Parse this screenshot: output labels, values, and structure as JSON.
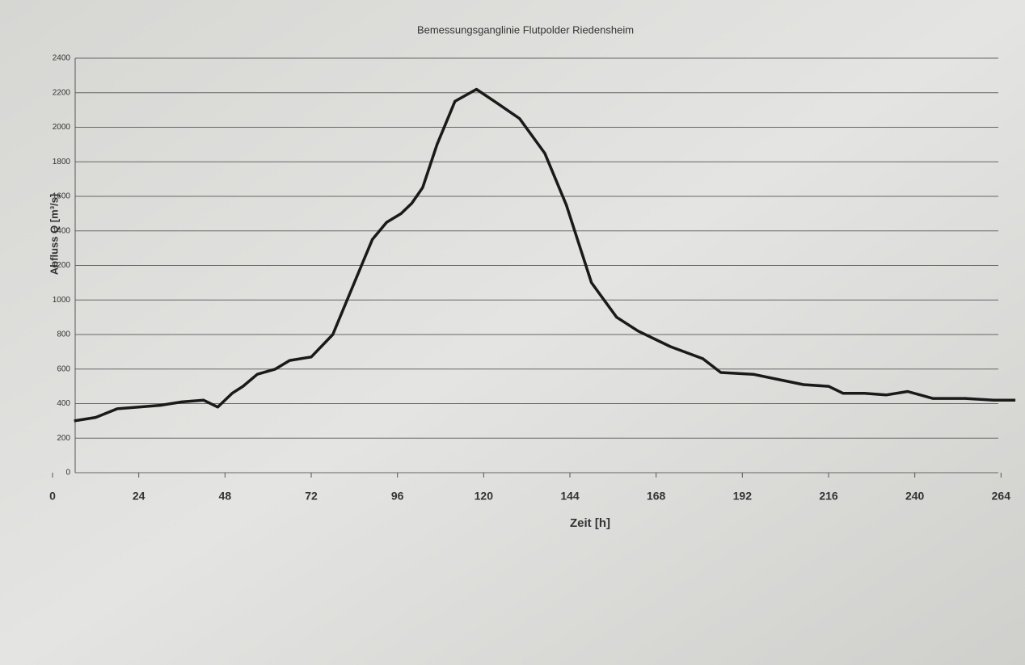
{
  "chart_data": {
    "type": "line",
    "title": "Bemessungsganglinie Flutpolder Riedensheim",
    "x_label": "Zeit [h]",
    "y_label": "Abfluss Q [m³/s]",
    "x": [
      6,
      12,
      18,
      24,
      30,
      36,
      42,
      46,
      50,
      53,
      57,
      62,
      66,
      72,
      78,
      82,
      86,
      89,
      93,
      97,
      100,
      103,
      107,
      112,
      118,
      123,
      130,
      137,
      143,
      150,
      157,
      163,
      172,
      181,
      186,
      195,
      202,
      209,
      216,
      220,
      226,
      232,
      238,
      245,
      254,
      262,
      268
    ],
    "values": [
      300,
      320,
      370,
      380,
      390,
      410,
      420,
      380,
      460,
      500,
      570,
      600,
      650,
      670,
      800,
      1000,
      1200,
      1350,
      1450,
      1500,
      1560,
      1650,
      1900,
      2150,
      2220,
      2150,
      2050,
      1850,
      1550,
      1100,
      900,
      820,
      730,
      660,
      580,
      570,
      540,
      510,
      500,
      460,
      460,
      450,
      470,
      430,
      430,
      420,
      420
    ],
    "color": "#1a1a1a",
    "xlim": [
      0,
      270
    ],
    "ylim": [
      0,
      2400
    ],
    "xticks": [
      0,
      24,
      48,
      72,
      96,
      120,
      144,
      168,
      192,
      216,
      240,
      264
    ],
    "yticks": [
      0,
      200,
      400,
      600,
      800,
      1000,
      1200,
      1400,
      1600,
      1800,
      2000,
      2200,
      2400
    ],
    "grid": true
  }
}
